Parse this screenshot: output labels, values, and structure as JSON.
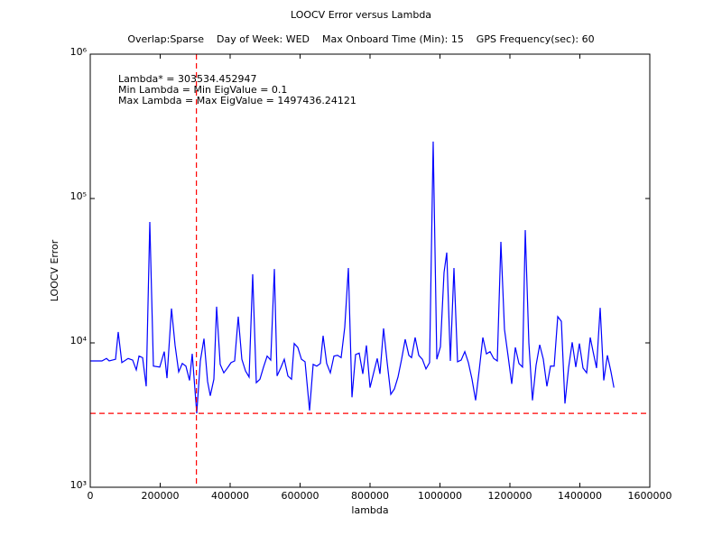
{
  "chart_data": {
    "type": "line",
    "title": "LOOCV Error versus Lambda",
    "subtitle": "Overlap:Sparse    Day of Week: WED    Max Onboard Time (Min): 15    GPS Frequency(sec): 60",
    "xlabel": "lambda",
    "ylabel": "LOOCV Error",
    "annotations": [
      "Lambda* = 303534.452947",
      "Min Lambda = Min EigValue = 0.1",
      "Max Lambda = Max EigValue = 1497436.24121"
    ],
    "yscale": "log",
    "xlim": [
      0,
      1600000
    ],
    "ylim": [
      1000,
      1000000
    ],
    "xticks": [
      0,
      200000,
      400000,
      600000,
      800000,
      1000000,
      1200000,
      1400000,
      1600000
    ],
    "yticks": [
      {
        "value": 1000,
        "label": "10³"
      },
      {
        "value": 10000,
        "label": "10⁴"
      },
      {
        "value": 100000,
        "label": "10⁵"
      },
      {
        "value": 1000000,
        "label": "10⁶"
      }
    ],
    "reference_lines": {
      "x": 303534.452947,
      "y": 3250,
      "color": "#ff0000"
    },
    "series": [
      {
        "color": "#0000ff",
        "x": [
          0,
          33500,
          46500,
          54200,
          72300,
          80000,
          90300,
          108400,
          121300,
          131600,
          139400,
          149700,
          160000,
          170300,
          180600,
          198700,
          211600,
          219400,
          232300,
          242600,
          252900,
          263200,
          273500,
          283900,
          291600,
          304500,
          314800,
          325200,
          335500,
          343200,
          353500,
          361300,
          371600,
          381900,
          392300,
          402600,
          412900,
          423200,
          433500,
          443900,
          454200,
          464500,
          474800,
          485200,
          495500,
          505800,
          516100,
          526500,
          534200,
          544500,
          554800,
          565200,
          575500,
          583200,
          593500,
          603900,
          614200,
          627100,
          637400,
          647700,
          658100,
          665800,
          676100,
          686500,
          696800,
          707100,
          717400,
          727700,
          738100,
          748400,
          758700,
          769000,
          779400,
          789700,
          800000,
          810300,
          820600,
          828400,
          838700,
          849000,
          859400,
          869700,
          880000,
          890300,
          900600,
          911000,
          918700,
          929000,
          939400,
          949700,
          960000,
          970300,
          980600,
          991000,
          1001300,
          1011600,
          1019400,
          1029700,
          1040000,
          1050300,
          1060600,
          1071000,
          1081300,
          1091600,
          1101900,
          1112300,
          1122600,
          1132900,
          1143200,
          1153500,
          1163900,
          1174200,
          1184500,
          1194800,
          1205200,
          1215500,
          1225800,
          1236100,
          1243900,
          1254200,
          1264500,
          1274800,
          1285200,
          1295500,
          1305800,
          1316100,
          1326500,
          1336800,
          1347100,
          1357400,
          1367700,
          1378100,
          1388400,
          1398700,
          1409000,
          1419400,
          1429700,
          1437400,
          1447700,
          1458100,
          1468400,
          1478700,
          1489000,
          1497400
        ],
        "values": [
          7500,
          7500,
          7800,
          7500,
          7700,
          11900,
          7300,
          7800,
          7600,
          6500,
          8100,
          7900,
          5000,
          68800,
          6900,
          6800,
          8700,
          5700,
          17300,
          9600,
          6300,
          7200,
          6900,
          5500,
          8400,
          3250,
          7500,
          10700,
          5400,
          4300,
          5600,
          17800,
          7100,
          6200,
          6700,
          7300,
          7500,
          15200,
          7700,
          6400,
          5800,
          29900,
          5300,
          5600,
          6800,
          8100,
          7600,
          32500,
          5900,
          6700,
          7700,
          5900,
          5600,
          9900,
          9300,
          7700,
          7400,
          3400,
          7100,
          6900,
          7200,
          11200,
          7200,
          6200,
          8100,
          8200,
          7900,
          12800,
          33000,
          4200,
          8300,
          8500,
          6100,
          9600,
          4900,
          6200,
          7800,
          6100,
          12600,
          7300,
          4400,
          4800,
          5800,
          7700,
          10600,
          8200,
          7900,
          10900,
          8200,
          7700,
          6600,
          7300,
          248000,
          7700,
          9400,
          30700,
          42200,
          7500,
          33000,
          7400,
          7600,
          8700,
          7300,
          5600,
          4000,
          6500,
          10900,
          8400,
          8700,
          7800,
          7500,
          50100,
          12400,
          8100,
          5200,
          9300,
          7200,
          6800,
          60400,
          10000,
          4000,
          7000,
          9700,
          7700,
          5000,
          6900,
          6900,
          15200,
          14100,
          3800,
          6700,
          10100,
          6800,
          9900,
          6700,
          6200,
          10900,
          8800,
          6700,
          17500,
          5500,
          8200,
          6300,
          4900
        ]
      }
    ]
  }
}
